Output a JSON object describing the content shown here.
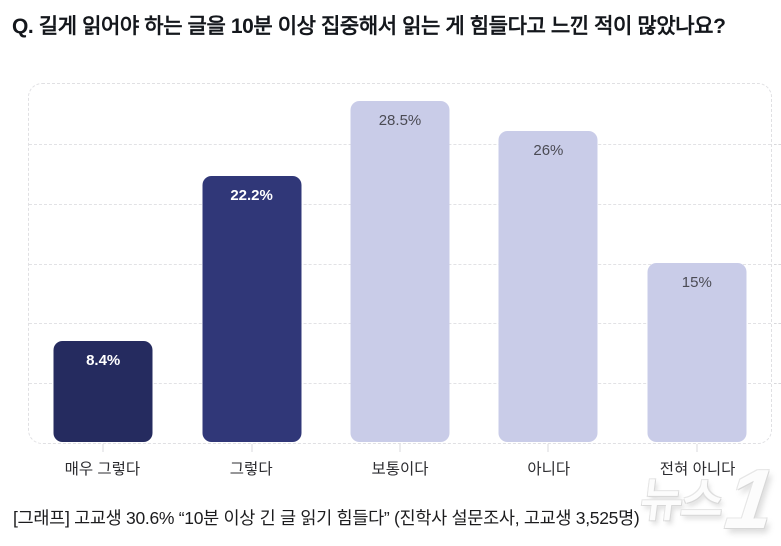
{
  "title": "Q. 길게 읽어야 하는 글을 10분 이상 집중해서 읽는 게 힘들다고 느낀 적이 많았나요?",
  "chart_data": {
    "type": "bar",
    "title": "",
    "categories": [
      "매우 그렇다",
      "그렇다",
      "보통이다",
      "아니다",
      "전혀 아니다"
    ],
    "values": [
      8.4,
      22.2,
      28.5,
      26,
      15
    ],
    "value_labels": [
      "8.4%",
      "22.2%",
      "28.5%",
      "26%",
      "15%"
    ],
    "bar_colors": [
      "#252b5f",
      "#303778",
      "#c9cce8",
      "#c9cce8",
      "#c9cce8"
    ],
    "value_label_colors": [
      "#ffffff",
      "#ffffff",
      "#4b4b54",
      "#4b4b54",
      "#4b4b54"
    ],
    "xlabel": "",
    "ylabel": "",
    "ylim": [
      0,
      30
    ],
    "gridline_step": 5,
    "grid": "horizontal-dashed",
    "legend_position": "none"
  },
  "caption": "[그래프] 고교생 30.6% “10분 이상 긴 글 읽기 힘들다” (진학사 설문조사, 고교생 3,525명)",
  "watermark": {
    "text": "뉴스",
    "number": "1"
  }
}
